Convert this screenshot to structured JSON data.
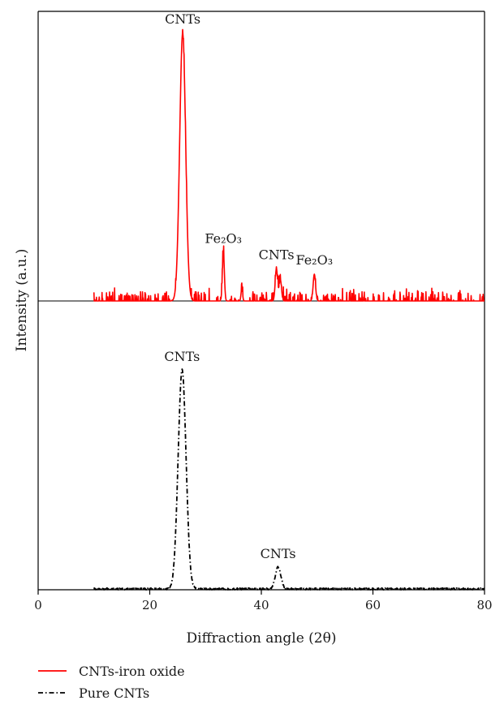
{
  "chart_data": {
    "type": "line",
    "xlabel": "Diffraction angle (2θ)",
    "ylabel": "Intensity (a.u.)",
    "xlim": [
      0,
      80
    ],
    "ylim_relative": [
      0,
      1
    ],
    "x_ticks": [
      0,
      20,
      40,
      60,
      80
    ],
    "grid": false,
    "legend_position": "bottom-left",
    "series": [
      {
        "name": "CNTs-iron oxide",
        "color": "#ff0000",
        "line_style": "solid",
        "peaks": [
          {
            "x": 25.9,
            "height": 1.0,
            "width": 0.75
          },
          {
            "x": 33.2,
            "height": 0.18,
            "width": 0.25
          },
          {
            "x": 36.5,
            "height": 0.045,
            "width": 0.2
          },
          {
            "x": 42.7,
            "height": 0.12,
            "width": 0.3
          },
          {
            "x": 43.4,
            "height": 0.08,
            "width": 0.3
          },
          {
            "x": 49.5,
            "height": 0.1,
            "width": 0.3
          }
        ],
        "annotations": [
          {
            "text": "CNTs",
            "x": 25.9
          },
          {
            "text": "Fe2O3",
            "x": 33.2
          },
          {
            "text": "CNTs",
            "x": 42.7
          },
          {
            "text": "Fe2O3",
            "x": 49.5
          }
        ]
      },
      {
        "name": "Pure CNTs",
        "color": "#000000",
        "line_style": "dash-dot",
        "peaks": [
          {
            "x": 25.8,
            "height": 1.0,
            "width": 1.0
          },
          {
            "x": 43.0,
            "height": 0.1,
            "width": 0.7
          }
        ],
        "annotations": [
          {
            "text": "CNTs",
            "x": 25.8
          },
          {
            "text": "CNTs",
            "x": 43.0
          }
        ]
      }
    ]
  }
}
